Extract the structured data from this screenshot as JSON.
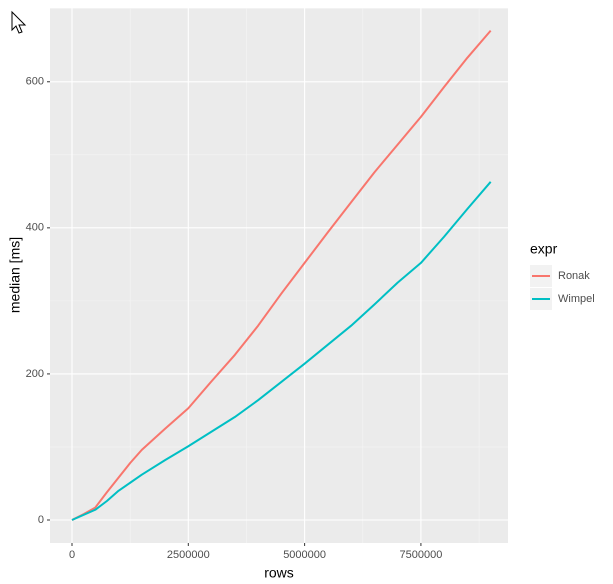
{
  "chart_data": {
    "type": "line",
    "x_label": "rows",
    "y_label": "median [ms]",
    "x": [
      0,
      250000,
      500000,
      750000,
      1000000,
      1250000,
      1500000,
      2000000,
      2500000,
      3000000,
      3500000,
      4000000,
      4500000,
      5000000,
      5500000,
      6000000,
      6500000,
      7000000,
      7500000,
      8000000,
      8500000,
      9000000
    ],
    "series": [
      {
        "name": "Ronak",
        "color": "#F8766D",
        "values": [
          0,
          8,
          17,
          38,
          58,
          78,
          96,
          125,
          153,
          190,
          226,
          266,
          310,
          352,
          394,
          435,
          476,
          514,
          552,
          593,
          633,
          670
        ]
      },
      {
        "name": "Wimpel",
        "color": "#00BFC4",
        "values": [
          0,
          7,
          14,
          26,
          40,
          51,
          62,
          82,
          101,
          121,
          141,
          164,
          189,
          214,
          240,
          266,
          295,
          325,
          352,
          388,
          426,
          463
        ]
      }
    ],
    "xlim": [
      -473000,
      9372000
    ],
    "ylim": [
      -31.5,
      701
    ],
    "xticks": [
      0,
      2500000,
      5000000,
      7500000
    ],
    "yticks": [
      0,
      200,
      400,
      600
    ],
    "grid": true,
    "legend_title": "expr",
    "legend_position": "right"
  }
}
